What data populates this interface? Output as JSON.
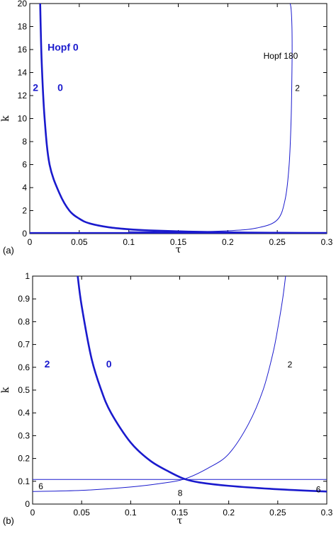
{
  "chart_data": [
    {
      "panel_label": "(a)",
      "type": "line",
      "xlabel": "τ",
      "ylabel": "k",
      "xlim": [
        0,
        0.3
      ],
      "ylim": [
        0,
        20
      ],
      "xticks": [
        "0",
        "0.05",
        "0.1",
        "0.15",
        "0.2",
        "0.25",
        "0.3"
      ],
      "yticks": [
        "0",
        "2",
        "4",
        "6",
        "8",
        "10",
        "12",
        "14",
        "16",
        "18",
        "20"
      ],
      "line_color": "#1a1acd",
      "series": [
        {
          "style": "thick",
          "x": [
            0.0105,
            0.012,
            0.015,
            0.02,
            0.03,
            0.04,
            0.05,
            0.06,
            0.08,
            0.1,
            0.12,
            0.15,
            0.18,
            0.2,
            0.22,
            0.25,
            0.3
          ],
          "y": [
            20,
            15,
            10,
            6,
            3.5,
            2.0,
            1.3,
            0.9,
            0.55,
            0.38,
            0.28,
            0.2,
            0.14,
            0.11,
            0.09,
            0.07,
            0.05
          ]
        },
        {
          "style": "thin",
          "x": [
            0.1,
            0.15,
            0.2,
            0.23,
            0.25,
            0.258,
            0.262,
            0.264,
            0.2648,
            0.265,
            0.2648,
            0.264,
            0.263
          ],
          "y": [
            0.18,
            0.15,
            0.25,
            0.5,
            1.2,
            3,
            6,
            10,
            14,
            16,
            18,
            19.5,
            20
          ]
        },
        {
          "style": "thick",
          "x": [
            0,
            0.3
          ],
          "y": [
            0.05,
            0.05
          ]
        }
      ],
      "annotations": [
        {
          "text": "Hopf 0",
          "x": 0.018,
          "y": 15.9,
          "style": "bold"
        },
        {
          "text": "2",
          "x": 0.003,
          "y": 12.4,
          "style": "bold"
        },
        {
          "text": "0",
          "x": 0.028,
          "y": 12.4,
          "style": "bold"
        },
        {
          "text": "Hopf 180",
          "x": 0.236,
          "y": 15.2,
          "style": "plain"
        },
        {
          "text": "2",
          "x": 0.268,
          "y": 12.4,
          "style": "plain"
        }
      ]
    },
    {
      "panel_label": "(b)",
      "type": "line",
      "xlabel": "τ",
      "ylabel": "k",
      "xlim": [
        0,
        0.3
      ],
      "ylim": [
        0,
        1
      ],
      "xticks": [
        "0",
        "0.05",
        "0.1",
        "0.15",
        "0.2",
        "0.25",
        "0.3"
      ],
      "yticks": [
        "0",
        "0.1",
        "0.2",
        "0.3",
        "0.4",
        "0.5",
        "0.6",
        "0.7",
        "0.8",
        "0.9",
        "1"
      ],
      "line_color": "#1a1acd",
      "series": [
        {
          "style": "thick",
          "x": [
            0.046,
            0.05,
            0.06,
            0.07,
            0.08,
            0.1,
            0.12,
            0.14,
            0.155,
            0.17,
            0.2,
            0.25,
            0.3
          ],
          "y": [
            1.0,
            0.87,
            0.64,
            0.5,
            0.4,
            0.27,
            0.19,
            0.14,
            0.11,
            0.095,
            0.08,
            0.065,
            0.055
          ]
        },
        {
          "style": "thin",
          "x": [
            0,
            0.05,
            0.1,
            0.13,
            0.155,
            0.18,
            0.2,
            0.22,
            0.235,
            0.245,
            0.25,
            0.255,
            0.258
          ],
          "y": [
            0.055,
            0.06,
            0.075,
            0.09,
            0.11,
            0.16,
            0.22,
            0.35,
            0.5,
            0.66,
            0.77,
            0.9,
            1.0
          ]
        },
        {
          "style": "thin",
          "x": [
            0,
            0.3
          ],
          "y": [
            0.108,
            0.108
          ]
        }
      ],
      "annotations": [
        {
          "text": "2",
          "x": 0.012,
          "y": 0.6,
          "style": "bold"
        },
        {
          "text": "0",
          "x": 0.075,
          "y": 0.6,
          "style": "bold"
        },
        {
          "text": "2",
          "x": 0.26,
          "y": 0.6,
          "style": "plain"
        },
        {
          "text": "6",
          "x": 0.006,
          "y": 0.065,
          "style": "plain"
        },
        {
          "text": "8",
          "x": 0.148,
          "y": 0.035,
          "style": "plain"
        },
        {
          "text": "6",
          "x": 0.289,
          "y": 0.052,
          "style": "plain"
        }
      ]
    }
  ]
}
